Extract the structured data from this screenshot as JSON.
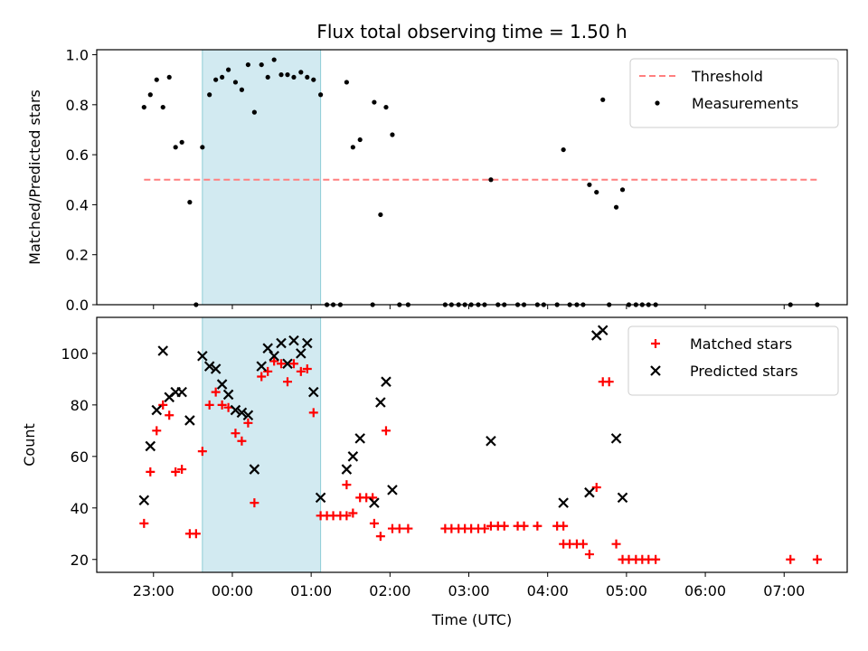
{
  "chart_data": {
    "title": "Flux total observing time = 1.50 h",
    "xlabel": "Time (UTC)",
    "x_tick_labels": [
      "23:00",
      "00:00",
      "01:00",
      "02:00",
      "03:00",
      "04:00",
      "05:00",
      "06:00",
      "07:00"
    ],
    "x_tick_hours": [
      23,
      24,
      25,
      26,
      27,
      28,
      29,
      30,
      31
    ],
    "xlim": [
      22.28,
      31.8
    ],
    "highlight_span": [
      23.62,
      25.12
    ],
    "highlight_color": "#add8e6",
    "panels": [
      {
        "type": "scatter",
        "ylabel": "Matched/Predicted stars",
        "ylim": [
          0,
          1.02
        ],
        "y_ticks": [
          0.0,
          0.2,
          0.4,
          0.6,
          0.8,
          1.0
        ],
        "y_tick_labels": [
          "0.0",
          "0.2",
          "0.4",
          "0.6",
          "0.8",
          "1.0"
        ],
        "legend_position": "upper right",
        "threshold": {
          "name": "Threshold",
          "value": 0.5,
          "x_range": [
            22.88,
            31.42
          ],
          "color": "#ff7f7f"
        },
        "series": [
          {
            "name": "Measurements",
            "color": "#000000",
            "marker": "dot",
            "points": [
              [
                22.88,
                0.79
              ],
              [
                22.96,
                0.84
              ],
              [
                23.04,
                0.9
              ],
              [
                23.12,
                0.79
              ],
              [
                23.2,
                0.91
              ],
              [
                23.28,
                0.63
              ],
              [
                23.36,
                0.65
              ],
              [
                23.46,
                0.41
              ],
              [
                23.54,
                0.0
              ],
              [
                23.62,
                0.63
              ],
              [
                23.71,
                0.84
              ],
              [
                23.79,
                0.9
              ],
              [
                23.87,
                0.91
              ],
              [
                23.95,
                0.94
              ],
              [
                24.04,
                0.89
              ],
              [
                24.12,
                0.86
              ],
              [
                24.2,
                0.96
              ],
              [
                24.28,
                0.77
              ],
              [
                24.37,
                0.96
              ],
              [
                24.45,
                0.91
              ],
              [
                24.53,
                0.98
              ],
              [
                24.62,
                0.92
              ],
              [
                24.7,
                0.92
              ],
              [
                24.78,
                0.91
              ],
              [
                24.87,
                0.93
              ],
              [
                24.95,
                0.91
              ],
              [
                25.03,
                0.9
              ],
              [
                25.12,
                0.84
              ],
              [
                25.2,
                0.0
              ],
              [
                25.28,
                0.0
              ],
              [
                25.37,
                0.0
              ],
              [
                25.45,
                0.89
              ],
              [
                25.53,
                0.63
              ],
              [
                25.62,
                0.66
              ],
              [
                25.78,
                0.0
              ],
              [
                25.8,
                0.81
              ],
              [
                25.88,
                0.36
              ],
              [
                25.95,
                0.79
              ],
              [
                26.03,
                0.68
              ],
              [
                26.12,
                0.0
              ],
              [
                26.23,
                0.0
              ],
              [
                26.7,
                0.0
              ],
              [
                26.78,
                0.0
              ],
              [
                26.87,
                0.0
              ],
              [
                26.95,
                0.0
              ],
              [
                27.03,
                0.0
              ],
              [
                27.12,
                0.0
              ],
              [
                27.2,
                0.0
              ],
              [
                27.28,
                0.5
              ],
              [
                27.37,
                0.0
              ],
              [
                27.45,
                0.0
              ],
              [
                27.62,
                0.0
              ],
              [
                27.7,
                0.0
              ],
              [
                27.87,
                0.0
              ],
              [
                27.95,
                0.0
              ],
              [
                28.12,
                0.0
              ],
              [
                28.2,
                0.62
              ],
              [
                28.28,
                0.0
              ],
              [
                28.37,
                0.0
              ],
              [
                28.45,
                0.0
              ],
              [
                28.53,
                0.48
              ],
              [
                28.62,
                0.45
              ],
              [
                28.7,
                0.82
              ],
              [
                28.78,
                0.0
              ],
              [
                28.87,
                0.39
              ],
              [
                28.95,
                0.46
              ],
              [
                29.03,
                0.0
              ],
              [
                29.12,
                0.0
              ],
              [
                29.2,
                0.0
              ],
              [
                29.28,
                0.0
              ],
              [
                29.37,
                0.0
              ],
              [
                31.08,
                0.0
              ],
              [
                31.42,
                0.0
              ]
            ]
          }
        ]
      },
      {
        "type": "scatter",
        "ylabel": "Count",
        "ylim": [
          15,
          114
        ],
        "y_ticks": [
          20,
          40,
          60,
          80,
          100
        ],
        "y_tick_labels": [
          "20",
          "40",
          "60",
          "80",
          "100"
        ],
        "legend_position": "upper right",
        "series": [
          {
            "name": "Matched stars",
            "color": "#ff0000",
            "marker": "plus",
            "points": [
              [
                22.88,
                34
              ],
              [
                22.96,
                54
              ],
              [
                23.04,
                70
              ],
              [
                23.12,
                80
              ],
              [
                23.2,
                76
              ],
              [
                23.28,
                54
              ],
              [
                23.36,
                55
              ],
              [
                23.46,
                30
              ],
              [
                23.54,
                30
              ],
              [
                23.62,
                62
              ],
              [
                23.71,
                80
              ],
              [
                23.79,
                85
              ],
              [
                23.87,
                80
              ],
              [
                23.95,
                79
              ],
              [
                24.04,
                69
              ],
              [
                24.12,
                66
              ],
              [
                24.2,
                73
              ],
              [
                24.28,
                42
              ],
              [
                24.37,
                91
              ],
              [
                24.45,
                93
              ],
              [
                24.53,
                97
              ],
              [
                24.62,
                96
              ],
              [
                24.7,
                89
              ],
              [
                24.78,
                96
              ],
              [
                24.87,
                93
              ],
              [
                24.95,
                94
              ],
              [
                25.03,
                77
              ],
              [
                25.12,
                37
              ],
              [
                25.2,
                37
              ],
              [
                25.28,
                37
              ],
              [
                25.37,
                37
              ],
              [
                25.45,
                37
              ],
              [
                25.45,
                49
              ],
              [
                25.53,
                38
              ],
              [
                25.62,
                44
              ],
              [
                25.7,
                44
              ],
              [
                25.78,
                44
              ],
              [
                25.8,
                34
              ],
              [
                25.88,
                29
              ],
              [
                25.95,
                70
              ],
              [
                26.03,
                32
              ],
              [
                26.12,
                32
              ],
              [
                26.23,
                32
              ],
              [
                26.7,
                32
              ],
              [
                26.78,
                32
              ],
              [
                26.87,
                32
              ],
              [
                26.95,
                32
              ],
              [
                27.03,
                32
              ],
              [
                27.12,
                32
              ],
              [
                27.2,
                32
              ],
              [
                27.28,
                33
              ],
              [
                27.37,
                33
              ],
              [
                27.45,
                33
              ],
              [
                27.62,
                33
              ],
              [
                27.7,
                33
              ],
              [
                27.87,
                33
              ],
              [
                28.12,
                33
              ],
              [
                28.2,
                33
              ],
              [
                28.2,
                26
              ],
              [
                28.28,
                26
              ],
              [
                28.37,
                26
              ],
              [
                28.45,
                26
              ],
              [
                28.53,
                22
              ],
              [
                28.62,
                48
              ],
              [
                28.7,
                89
              ],
              [
                28.78,
                89
              ],
              [
                28.87,
                26
              ],
              [
                28.95,
                20
              ],
              [
                29.03,
                20
              ],
              [
                29.12,
                20
              ],
              [
                29.2,
                20
              ],
              [
                29.28,
                20
              ],
              [
                29.37,
                20
              ],
              [
                31.08,
                20
              ],
              [
                31.42,
                20
              ]
            ]
          },
          {
            "name": "Predicted stars",
            "color": "#000000",
            "marker": "cross",
            "points": [
              [
                22.88,
                43
              ],
              [
                22.96,
                64
              ],
              [
                23.04,
                78
              ],
              [
                23.12,
                101
              ],
              [
                23.2,
                83
              ],
              [
                23.28,
                85
              ],
              [
                23.36,
                85
              ],
              [
                23.46,
                74
              ],
              [
                23.62,
                99
              ],
              [
                23.71,
                95
              ],
              [
                23.79,
                94
              ],
              [
                23.87,
                88
              ],
              [
                23.95,
                84
              ],
              [
                24.04,
                78
              ],
              [
                24.12,
                77
              ],
              [
                24.2,
                76
              ],
              [
                24.28,
                55
              ],
              [
                24.37,
                95
              ],
              [
                24.45,
                102
              ],
              [
                24.53,
                99
              ],
              [
                24.62,
                104
              ],
              [
                24.7,
                96
              ],
              [
                24.78,
                105
              ],
              [
                24.87,
                100
              ],
              [
                24.95,
                104
              ],
              [
                25.03,
                85
              ],
              [
                25.12,
                44
              ],
              [
                25.45,
                55
              ],
              [
                25.53,
                60
              ],
              [
                25.62,
                67
              ],
              [
                25.8,
                42
              ],
              [
                25.88,
                81
              ],
              [
                25.95,
                89
              ],
              [
                26.03,
                47
              ],
              [
                27.28,
                66
              ],
              [
                28.2,
                42
              ],
              [
                28.53,
                46
              ],
              [
                28.62,
                107
              ],
              [
                28.7,
                109
              ],
              [
                28.87,
                67
              ],
              [
                28.95,
                44
              ]
            ]
          }
        ]
      }
    ]
  }
}
